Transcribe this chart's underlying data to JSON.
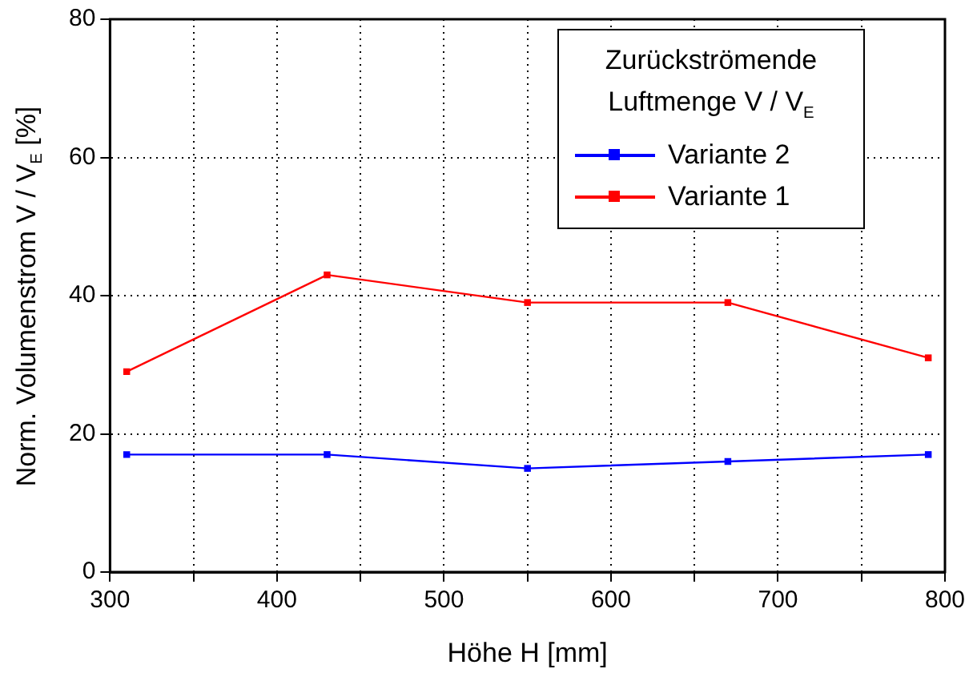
{
  "chart_data": {
    "type": "line",
    "xlabel": "Höhe H [mm]",
    "ylabel": "Norm. Volumenstrom V / V$_{E}$ [%]",
    "legend_title": "Zurückströmende Luftmenge V / V$_{E}$",
    "x": [
      310,
      430,
      550,
      670,
      790
    ],
    "series": [
      {
        "name": "Variante 2",
        "color": "#0000ff",
        "values": [
          17,
          17,
          15,
          16,
          17
        ]
      },
      {
        "name": "Variante 1",
        "color": "#ff0000",
        "values": [
          29,
          43,
          39,
          39,
          31
        ]
      }
    ],
    "xlim": [
      300,
      800
    ],
    "xticks": [
      300,
      {
        "value": 350,
        "label": null
      },
      400,
      {
        "value": 450,
        "label": null
      },
      500,
      {
        "value": 550,
        "label": null
      },
      600,
      {
        "value": 650,
        "label": null
      },
      700,
      {
        "value": 750,
        "label": null
      },
      800
    ],
    "ylim": [
      0,
      80
    ],
    "yticks": [
      0,
      20,
      40,
      60,
      80
    ],
    "grid": true,
    "legend": "top right",
    "marker": "square",
    "line_style": "solid"
  }
}
